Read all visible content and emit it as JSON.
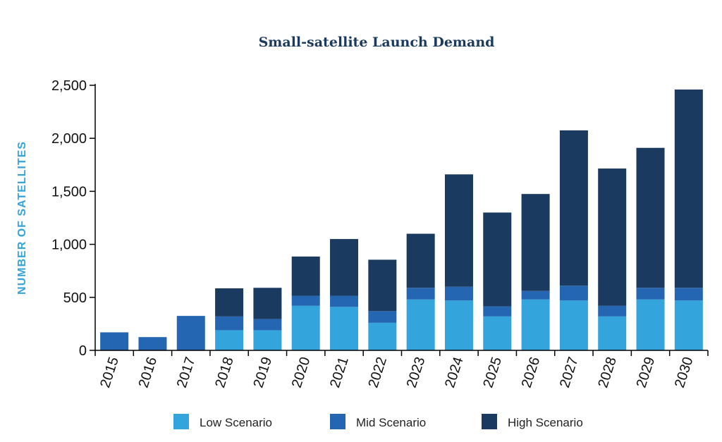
{
  "chart_data": {
    "type": "bar",
    "stacked": true,
    "title": "Small-satellite Launch Demand",
    "ylabel": "NUMBER OF  SATELLITES",
    "xlabel": "",
    "ylim": [
      0,
      2500
    ],
    "yticks": [
      0,
      500,
      1000,
      1500,
      2000,
      2500
    ],
    "ytick_labels": [
      "0",
      "500",
      "1,000",
      "1,500",
      "2,000",
      "2,500"
    ],
    "grid": false,
    "legend_position": "bottom",
    "categories": [
      "2015",
      "2016",
      "2017",
      "2018",
      "2019",
      "2020",
      "2021",
      "2022",
      "2023",
      "2024",
      "2025",
      "2026",
      "2027",
      "2028",
      "2029",
      "2030"
    ],
    "series": [
      {
        "name": "Low Scenario",
        "color": "#33a4dc",
        "values": [
          0,
          0,
          0,
          190,
          190,
          420,
          410,
          260,
          480,
          470,
          320,
          480,
          470,
          320,
          480,
          470
        ]
      },
      {
        "name": "Mid Scenario",
        "color": "#2466b1",
        "values": [
          170,
          125,
          325,
          130,
          105,
          95,
          105,
          110,
          110,
          130,
          95,
          80,
          140,
          100,
          110,
          120
        ]
      },
      {
        "name": "High Scenario",
        "color": "#1b3a5f",
        "values": [
          0,
          0,
          0,
          265,
          295,
          370,
          535,
          485,
          510,
          1060,
          885,
          915,
          1465,
          1295,
          1320,
          1870
        ]
      }
    ]
  }
}
